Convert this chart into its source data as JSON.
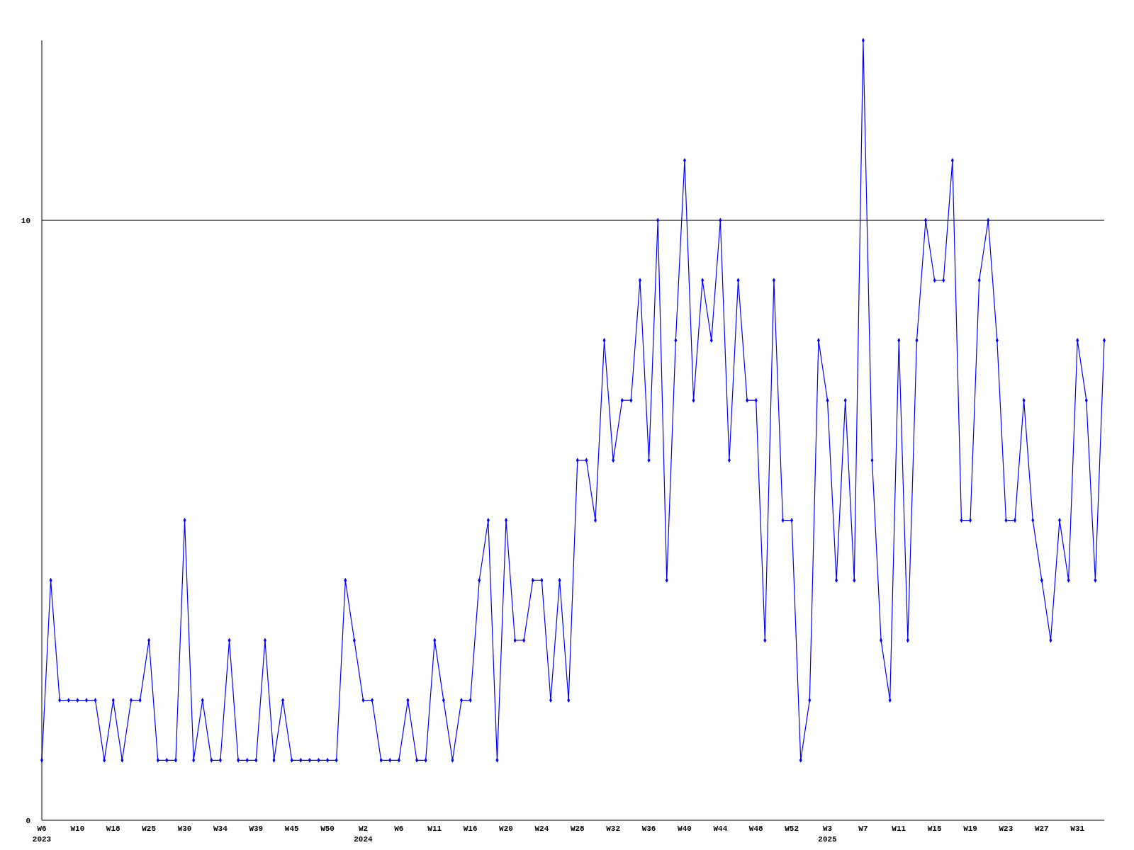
{
  "chart_data": {
    "type": "line",
    "categories": [
      "W6\n2023",
      null,
      null,
      null,
      "W10",
      null,
      null,
      null,
      "W18",
      null,
      null,
      null,
      "W25",
      null,
      null,
      null,
      "W30",
      null,
      null,
      null,
      "W34",
      null,
      null,
      null,
      "W39",
      null,
      null,
      null,
      "W45",
      null,
      null,
      null,
      "W50",
      null,
      null,
      null,
      "W2\n2024",
      null,
      null,
      null,
      "W6",
      null,
      null,
      null,
      "W11",
      null,
      null,
      null,
      "W16",
      null,
      null,
      null,
      "W20",
      null,
      null,
      null,
      "W24",
      null,
      null,
      null,
      "W28",
      null,
      null,
      null,
      "W32",
      null,
      null,
      null,
      "W36",
      null,
      null,
      null,
      "W40",
      null,
      null,
      null,
      "W44",
      null,
      null,
      null,
      "W48",
      null,
      null,
      null,
      "W52",
      null,
      null,
      null,
      "W3\n2025",
      null,
      null,
      null,
      "W7",
      null,
      null,
      null,
      "W11",
      null,
      null,
      null,
      "W15",
      null,
      null,
      null,
      "W19",
      null,
      null,
      null,
      "W23",
      null,
      null,
      null,
      "W27",
      null,
      null,
      null,
      "W31",
      null,
      null,
      null
    ],
    "series": [
      {
        "color": "#0000ff",
        "values": [
          1,
          4,
          2,
          2,
          2,
          2,
          2,
          1,
          2,
          1,
          2,
          2,
          3,
          1,
          1,
          1,
          5,
          1,
          2,
          1,
          1,
          3,
          1,
          1,
          1,
          3,
          1,
          2,
          1,
          1,
          1,
          1,
          1,
          1,
          4,
          3,
          2,
          2,
          1,
          1,
          1,
          2,
          1,
          1,
          3,
          2,
          1,
          2,
          2,
          4,
          5,
          1,
          5,
          3,
          3,
          4,
          4,
          2,
          4,
          2,
          6,
          6,
          5,
          8,
          6,
          7,
          7,
          9,
          6,
          10,
          4,
          8,
          11,
          7,
          9,
          8,
          10,
          6,
          9,
          7,
          7,
          3,
          9,
          5,
          5,
          1,
          2,
          8,
          7,
          4,
          7,
          4,
          13,
          6,
          3,
          2,
          8,
          3,
          8,
          10,
          9,
          9,
          11,
          5,
          5,
          9,
          10,
          8,
          5,
          5,
          7,
          5,
          4,
          3,
          5,
          4,
          8,
          7,
          4,
          8
        ]
      }
    ],
    "ylim": [
      0,
      13
    ],
    "yticks": [
      0,
      10
    ],
    "grid": "y",
    "marker": "diamond",
    "line_style": "solid"
  }
}
